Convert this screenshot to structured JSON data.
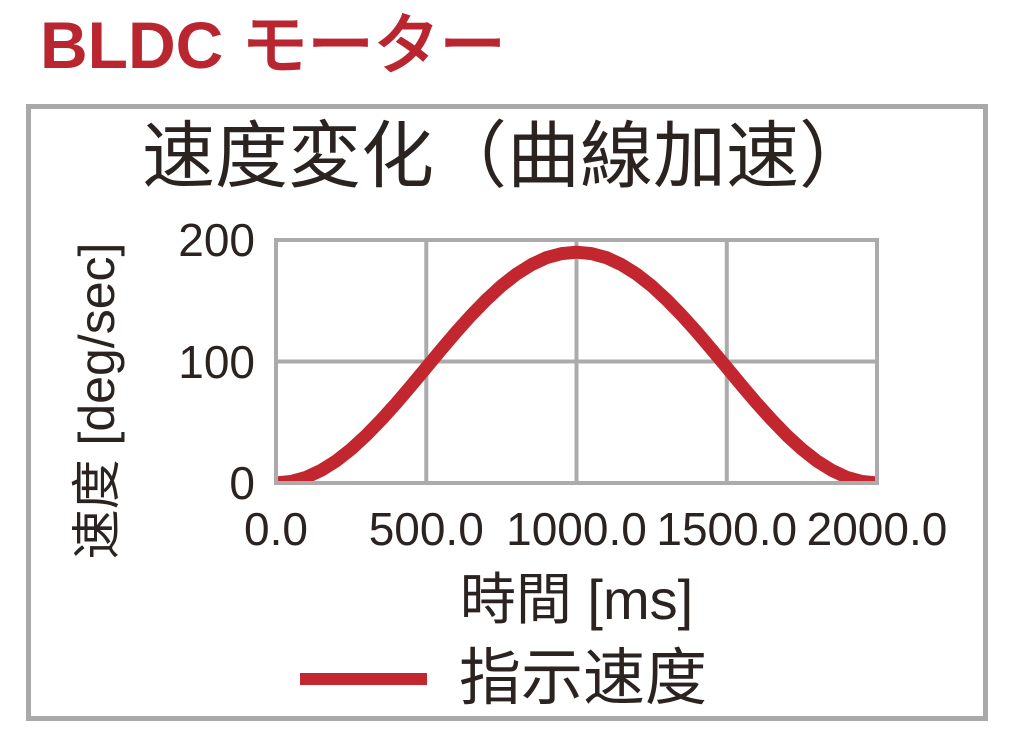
{
  "page": {
    "heading": "BLDC モーター"
  },
  "chart": {
    "title": "速度変化（曲線加速）",
    "x_axis_label": "時間 [ms]",
    "y_axis_label": "速度 [deg/sec]",
    "x_tick_labels": [
      "0.0",
      "500.0",
      "1000.0",
      "1500.0",
      "2000.0"
    ],
    "y_tick_labels": [
      "200",
      "100",
      "0"
    ],
    "legend_label": "指示速度"
  },
  "colors": {
    "heading_red": "#B9262F",
    "series_red": "#C2262E",
    "grid_gray": "#ABABAB",
    "card_border_gray": "#A9A9A9",
    "text_dark": "#2B2320"
  },
  "chart_data": {
    "type": "line",
    "title": "速度変化（曲線加速）",
    "xlabel": "時間 [ms]",
    "ylabel": "速度 [deg/sec]",
    "xlim": [
      0,
      2000
    ],
    "ylim": [
      0,
      200
    ],
    "x_ticks": [
      0,
      500,
      1000,
      1500,
      2000
    ],
    "y_ticks": [
      0,
      100,
      200
    ],
    "grid": true,
    "legend_position": "bottom-center",
    "series": [
      {
        "name": "指示速度",
        "color": "#C2262E",
        "x": [
          0,
          50,
          100,
          150,
          200,
          250,
          300,
          350,
          400,
          450,
          500,
          550,
          600,
          650,
          700,
          750,
          800,
          850,
          900,
          950,
          1000,
          1050,
          1100,
          1150,
          1200,
          1250,
          1300,
          1350,
          1400,
          1450,
          1500,
          1550,
          1600,
          1650,
          1700,
          1750,
          1800,
          1850,
          1900,
          1950,
          2000
        ],
        "y": [
          0,
          1.2,
          4.6,
          10.4,
          18.1,
          27.8,
          39.2,
          51.9,
          65.6,
          80.1,
          95.0,
          109.9,
          124.4,
          138.1,
          150.8,
          162.2,
          171.9,
          179.7,
          185.4,
          188.8,
          190.0,
          188.8,
          185.4,
          179.7,
          171.9,
          162.2,
          150.8,
          138.1,
          124.4,
          109.9,
          95.0,
          80.1,
          65.6,
          51.9,
          39.2,
          27.8,
          18.1,
          10.4,
          4.6,
          1.2,
          0
        ]
      }
    ]
  }
}
